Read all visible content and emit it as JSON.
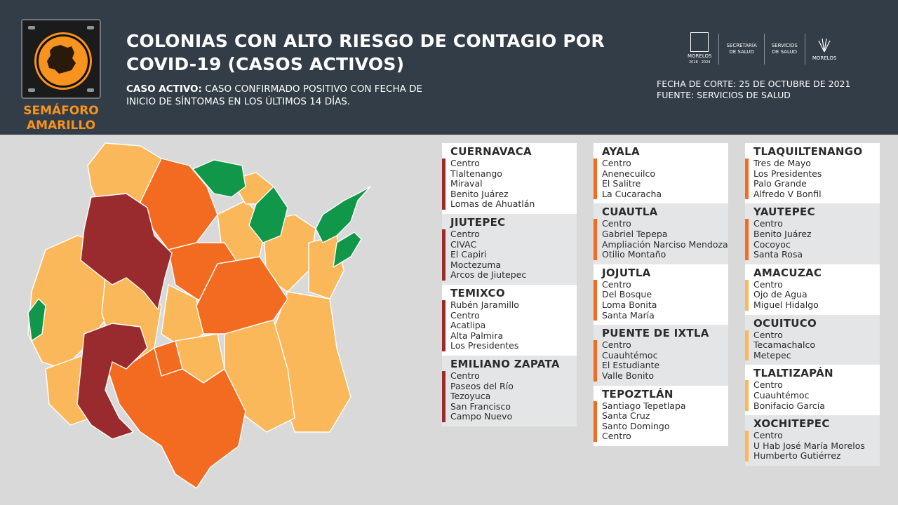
{
  "colors": {
    "header_bg": "#333d47",
    "high": "#992a2d",
    "orange": "#f26b21",
    "light": "#fbb85a",
    "green": "#10974a"
  },
  "badge": {
    "label": "SEMÁFORO\nAMARILLO",
    "icon": "morelos-map-icon"
  },
  "header": {
    "title_line1": "COLONIAS CON ALTO RIESGO DE CONTAGIO POR",
    "title_line2": "COVID-19 (CASOS ACTIVOS)",
    "def_label": "CASO ACTIVO:",
    "def_text_1": " CASO CONFIRMADO POSITIVO CON FECHA DE",
    "def_text_2": "INICIO DE SÍNTOMAS EN LOS ÚLTIMOS 14 DÍAS.",
    "fecha": "FECHA DE CORTE: 25 DE OCTUBRE DE 2021",
    "fuente": "FUENTE: SERVICIOS DE SALUD"
  },
  "logos": [
    {
      "line1": "MORELOS",
      "line2": "2018 - 2024"
    },
    {
      "line1": "SECRETARÍA",
      "line2": "DE SALUD"
    },
    {
      "line1": "SERVICIOS",
      "line2": "DE SALUD"
    },
    {
      "line1": "MORELOS",
      "line2": ""
    }
  ],
  "columns": [
    [
      {
        "name": "CUERNAVACA",
        "color": "#992a2d",
        "colonias": [
          "Centro",
          "Tlaltenango",
          "Miraval",
          "Benito Juárez",
          "Lomas de Ahuatlán"
        ]
      },
      {
        "name": "JIUTEPEC",
        "color": "#992a2d",
        "colonias": [
          "Centro",
          "CIVAC",
          "El Capiri",
          "Moctezuma",
          "Arcos de Jiutepec"
        ]
      },
      {
        "name": "TEMIXCO",
        "color": "#992a2d",
        "colonias": [
          "Rubén Jaramillo",
          "Centro",
          "Acatlipa",
          "Alta Palmira",
          "Los Presidentes"
        ]
      },
      {
        "name": "EMILIANO ZAPATA",
        "color": "#992a2d",
        "colonias": [
          "Centro",
          "Paseos del Río",
          "Tezoyuca",
          "San Francisco",
          "Campo Nuevo"
        ]
      }
    ],
    [
      {
        "name": "AYALA",
        "color": "#f26b21",
        "colonias": [
          "Centro",
          "Anenecuilco",
          "El Salitre",
          "La Cucaracha"
        ]
      },
      {
        "name": "CUAUTLA",
        "color": "#f26b21",
        "colonias": [
          "Centro",
          "Gabriel Tepepa",
          "Ampliación Narciso Mendoza",
          "Otilio Montaño"
        ]
      },
      {
        "name": "JOJUTLA",
        "color": "#f26b21",
        "colonias": [
          "Centro",
          "Del Bosque",
          "Loma Bonita",
          "Santa María"
        ]
      },
      {
        "name": "PUENTE DE IXTLA",
        "color": "#f26b21",
        "colonias": [
          "Centro",
          "Cuauhtémoc",
          "El Estudiante",
          "Valle Bonito"
        ]
      },
      {
        "name": "TEPOZTLÁN",
        "color": "#f26b21",
        "colonias": [
          "Santiago Tepetlapa",
          "Santa Cruz",
          "Santo Domingo",
          "Centro"
        ]
      }
    ],
    [
      {
        "name": "TLAQUILTENANGO",
        "color": "#f26b21",
        "colonias": [
          "Tres de Mayo",
          "Los Presidentes",
          "Palo Grande",
          "Alfredo V Bonfil"
        ]
      },
      {
        "name": "YAUTEPEC",
        "color": "#f26b21",
        "colonias": [
          "Centro",
          "Benito Juárez",
          "Cocoyoc",
          "Santa Rosa"
        ]
      },
      {
        "name": "AMACUZAC",
        "color": "#fbb85a",
        "colonias": [
          "Centro",
          "Ojo de Agua",
          "Miguel Hidalgo"
        ]
      },
      {
        "name": "OCUITUCO",
        "color": "#fbb85a",
        "colonias": [
          "Centro",
          "Tecamachalco",
          "Metepec"
        ]
      },
      {
        "name": "TLALTIZAPÁN",
        "color": "#fbb85a",
        "colonias": [
          "Centro",
          "Cuauhtémoc",
          "Bonifacio García"
        ]
      },
      {
        "name": "XOCHITEPEC",
        "color": "#fbb85a",
        "colonias": [
          "Centro",
          "U Hab José María Morelos",
          "Humberto Gutiérrez"
        ]
      }
    ]
  ]
}
